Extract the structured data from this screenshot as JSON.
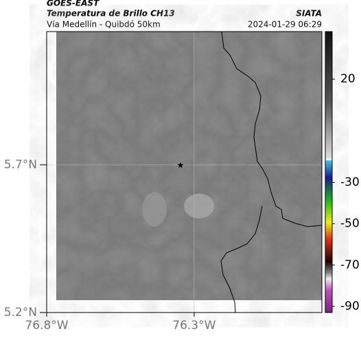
{
  "header": {
    "title": "GOES-EAST",
    "subtitle": "Temperatura de Brillo CH13",
    "source": "SIATA",
    "route": "Vía Medellín - Quibdó 50km",
    "datetime": "2024-01-29 06:29"
  },
  "map": {
    "latlim": [
      5.2,
      6.151
    ],
    "lonlim": [
      -76.8,
      -75.867
    ],
    "lat_ticks": [
      {
        "value": 5.7,
        "label": "5.7°N"
      },
      {
        "value": 5.2,
        "label": "5.2°N"
      }
    ],
    "lon_ticks": [
      {
        "value": -76.8,
        "label": "76.8°W"
      },
      {
        "value": -76.3,
        "label": "76.3°W"
      }
    ],
    "grid": true
  },
  "colorbar": {
    "clim": [
      -93,
      43
    ],
    "ticks": [
      20,
      -30,
      -50,
      -70,
      -90
    ]
  }
}
